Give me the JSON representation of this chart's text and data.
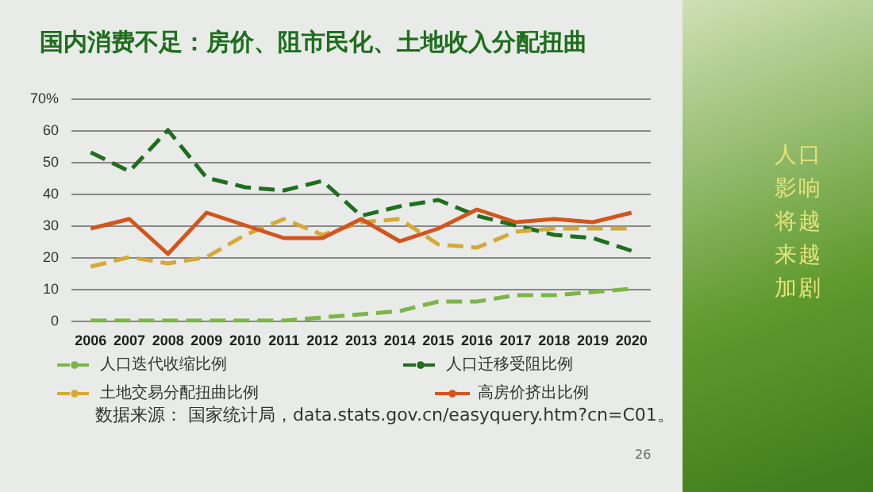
{
  "chart_data": {
    "type": "line",
    "title": "国内消费不足：房价、阻市民化、土地收入分配扭曲",
    "categories": [
      "2006",
      "2007",
      "2008",
      "2009",
      "2010",
      "2011",
      "2012",
      "2013",
      "2014",
      "2015",
      "2016",
      "2017",
      "2018",
      "2019",
      "2020"
    ],
    "series": [
      {
        "name": "人口迭代收缩比例",
        "color": "#7ab648",
        "line_style": "dashed",
        "values": [
          0,
          0,
          0,
          0,
          0,
          0,
          1,
          2,
          3,
          6,
          6,
          8,
          8,
          9,
          10
        ]
      },
      {
        "name": "人口迁移受阻比例",
        "color": "#1e6e1e",
        "line_style": "dashed",
        "values": [
          53,
          47,
          60,
          45,
          42,
          41,
          44,
          33,
          36,
          38,
          33,
          30,
          27,
          26,
          22
        ]
      },
      {
        "name": "土地交易分配扭曲比例",
        "color": "#d4a937",
        "line_style": "dashed",
        "values": [
          17,
          20,
          18,
          20,
          27,
          32,
          27,
          31,
          32,
          24,
          23,
          28,
          29,
          29,
          29
        ]
      },
      {
        "name": "高房价挤出比例",
        "color": "#d2551e",
        "line_style": "solid",
        "values": [
          29,
          32,
          21,
          34,
          30,
          26,
          26,
          32,
          25,
          29,
          35,
          31,
          32,
          31,
          34
        ]
      }
    ],
    "ylim": [
      0,
      70
    ],
    "yticks": [
      0,
      10,
      20,
      30,
      40,
      50,
      60,
      {
        "value": 70,
        "label": "70%"
      }
    ],
    "grid": "y",
    "legend": "bottom",
    "marker": "none",
    "annotations": [
      "数据来源： 国家统计局，data.stats.gov.cn/easyquery.htm?cn=C01。",
      "人口影响将越来越加剧",
      "26"
    ]
  }
}
